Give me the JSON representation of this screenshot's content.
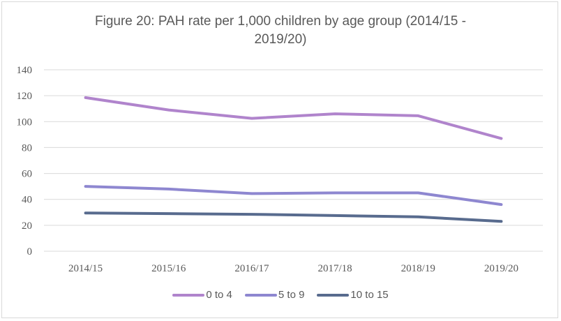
{
  "chart_data": {
    "type": "line",
    "title_line1": "Figure 20: PAH rate per 1,000 children by age group (2014/15 -",
    "title_line2": "2019/20)",
    "categories": [
      "2014/15",
      "2015/16",
      "2016/17",
      "2017/18",
      "2018/19",
      "2019/20"
    ],
    "ylim": [
      0,
      140
    ],
    "yticks": [
      "0",
      "20",
      "40",
      "60",
      "80",
      "100",
      "120",
      "140"
    ],
    "grid": true,
    "legend_position": "bottom",
    "series": [
      {
        "name": "0 to 4",
        "color": "#b084cc",
        "values": [
          118.5,
          109,
          102.5,
          106,
          104.5,
          87
        ]
      },
      {
        "name": "5 to 9",
        "color": "#8e87d0",
        "values": [
          50,
          48,
          44.5,
          45,
          45,
          36
        ]
      },
      {
        "name": "10 to 15",
        "color": "#586b8e",
        "values": [
          29.5,
          29,
          28.5,
          27.5,
          26.5,
          23
        ]
      }
    ]
  }
}
